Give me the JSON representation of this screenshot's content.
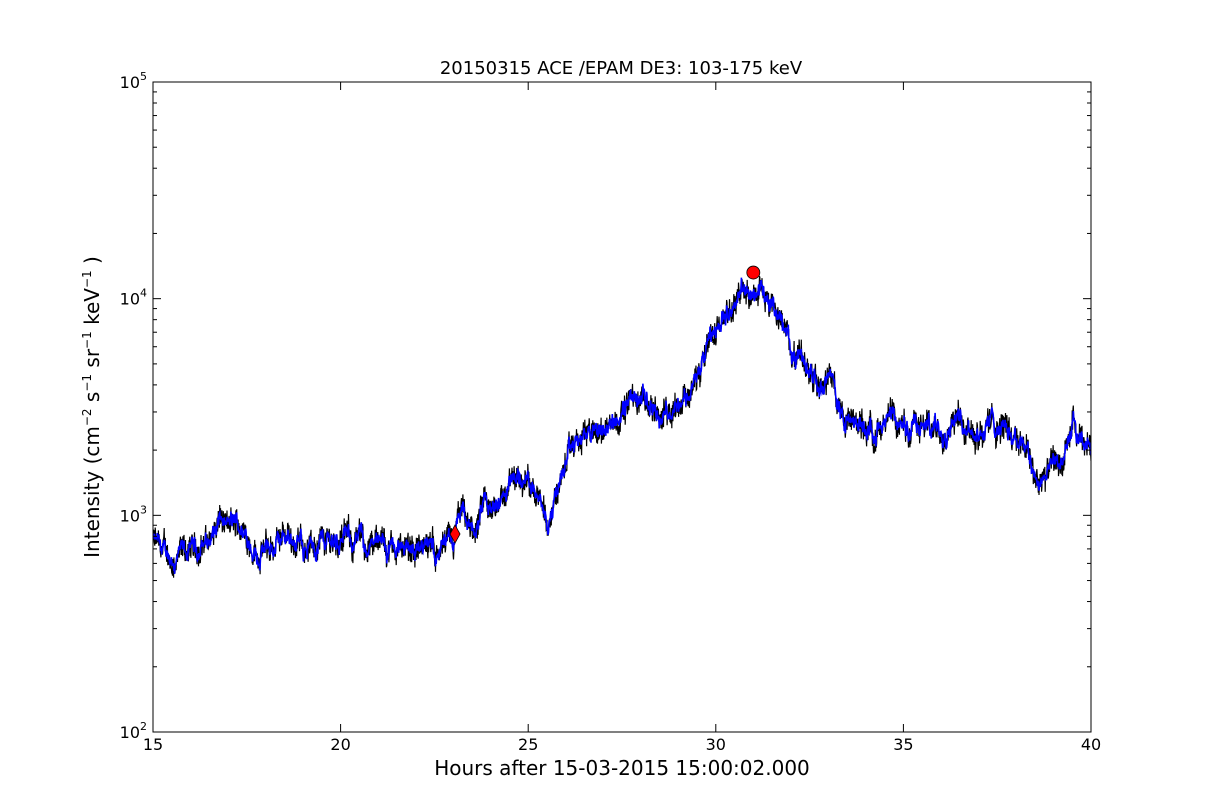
{
  "chart_data": {
    "type": "line",
    "title": "20150315 ACE /EPAM DE3: 103-175 keV",
    "xlabel": "Hours after 15-03-2015 15:00:02.000",
    "ylabel": {
      "prefix": "Intensity (cm",
      "p1": "−2",
      "s": " s",
      "p2": "−1",
      "sr": " sr",
      "p3": "−1",
      "kev": " keV",
      "p4": "−1",
      "suffix": " )"
    },
    "xlim": [
      15,
      40
    ],
    "ylim": [
      100,
      100000
    ],
    "yscale": "log",
    "grid": false,
    "x_ticks": [
      15,
      20,
      25,
      30,
      35,
      40
    ],
    "x_tick_labels": [
      "15",
      "20",
      "25",
      "30",
      "35",
      "40"
    ],
    "y_ticks": [
      {
        "value": 100,
        "base": "10",
        "exp": "2"
      },
      {
        "value": 1000,
        "base": "10",
        "exp": "3"
      },
      {
        "value": 10000,
        "base": "10",
        "exp": "4"
      },
      {
        "value": 100000,
        "base": "10",
        "exp": "5"
      }
    ],
    "colors": {
      "raw": "#000000",
      "smoothed": "#0000ff",
      "marker": "#ff0000"
    },
    "series_profile": {
      "x": [
        15.0,
        15.3,
        15.6,
        16.0,
        16.5,
        16.8,
        17.0,
        17.3,
        17.6,
        17.8,
        18.2,
        18.6,
        18.8,
        19.2,
        19.6,
        20.0,
        20.5,
        21.0,
        21.5,
        22.0,
        22.3,
        22.6,
        23.0,
        23.2,
        23.5,
        23.8,
        24.0,
        24.3,
        24.6,
        25.0,
        25.3,
        25.5,
        25.8,
        26.0,
        26.3,
        26.6,
        27.0,
        27.4,
        27.8,
        28.2,
        28.5,
        28.8,
        29.2,
        29.6,
        30.0,
        30.3,
        30.6,
        31.0,
        31.2,
        31.5,
        31.8,
        32.2,
        32.6,
        33.0,
        33.2,
        33.4,
        33.8,
        34.2,
        34.6,
        35.0,
        35.4,
        35.8,
        36.1,
        36.4,
        36.7,
        37.0,
        37.4,
        37.8,
        38.0,
        38.2,
        38.4,
        38.6,
        38.9,
        39.2,
        39.5,
        39.7,
        40.0
      ],
      "y": [
        760,
        650,
        620,
        670,
        780,
        920,
        880,
        900,
        760,
        680,
        690,
        820,
        760,
        730,
        780,
        780,
        760,
        720,
        700,
        740,
        690,
        690,
        720,
        1000,
        800,
        1050,
        1000,
        1250,
        1400,
        1450,
        1350,
        950,
        1300,
        1750,
        2100,
        2400,
        2450,
        2900,
        3400,
        3300,
        2900,
        3200,
        3600,
        4600,
        7000,
        9500,
        10200,
        11000,
        11500,
        9500,
        7500,
        5300,
        4700,
        4500,
        3600,
        2700,
        2600,
        2600,
        2550,
        2500,
        2700,
        2500,
        2600,
        3000,
        2800,
        2400,
        2700,
        2600,
        2300,
        2400,
        1750,
        1450,
        1650,
        1800,
        2600,
        2000,
        2200
      ]
    },
    "markers": [
      {
        "shape": "diamond",
        "x": 23.05,
        "y": 820
      },
      {
        "shape": "circle",
        "x": 31.0,
        "y": 13200
      }
    ]
  }
}
